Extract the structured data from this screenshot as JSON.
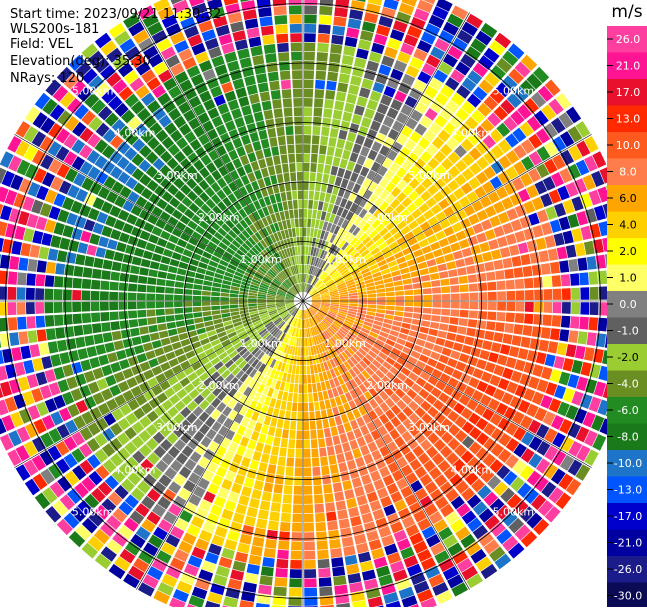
{
  "header": {
    "start_time": "Start time: 2023/09/21 11:30:32",
    "station": "WLS200s-181",
    "field": "Field: VEL",
    "elevation": "Elevation(deg): 35.30",
    "nrays": "NRays: 120"
  },
  "colorbar": {
    "unit": "m/s",
    "ticks": [
      "26.0",
      "21.0",
      "17.0",
      "13.0",
      "10.0",
      "8.0",
      "6.0",
      "4.0",
      "2.0",
      "1.0",
      "0.0",
      "-1.0",
      "-2.0",
      "-4.0",
      "-6.0",
      "-8.0",
      "-10.0",
      "-13.0",
      "-17.0",
      "-21.0",
      "-26.0",
      "-30.0"
    ],
    "colors": [
      "#ff3fa0",
      "#ff1493",
      "#e8102a",
      "#ff2a00",
      "#ff5a1e",
      "#ff7d4a",
      "#ffa500",
      "#ffd000",
      "#ffff00",
      "#ffff66",
      "#808080",
      "#606060",
      "#9acd32",
      "#6b8e23",
      "#228b22",
      "#1a7a1a",
      "#1e74c8",
      "#0055ff",
      "#0000cd",
      "#0000a0",
      "#1b1b8a",
      "#0a0a55"
    ]
  },
  "chart_data": {
    "type": "heatmap",
    "title": "",
    "projection": "polar PPI",
    "field": "VEL",
    "unit": "m/s",
    "nrays": 120,
    "range_rings_km": [
      1.0,
      2.0,
      3.0,
      4.0,
      5.0
    ],
    "range_labels": [
      "1.00km",
      "2.00km",
      "3.00km",
      "4.00km",
      "5.00km"
    ],
    "max_range_km": 5.6,
    "pattern": "dipole",
    "negative_peak_azimuth_deg": 300,
    "positive_peak_azimuth_deg": 120,
    "zero_line_azimuth_deg": [
      30,
      210
    ],
    "peak_velocity_ms": {
      "negative": -10.0,
      "positive": 10.0
    },
    "noise_beyond_km": 4.3,
    "spokes_deg": [
      0,
      30,
      60,
      90,
      120,
      150,
      180,
      210,
      240,
      270,
      300,
      330
    ]
  }
}
